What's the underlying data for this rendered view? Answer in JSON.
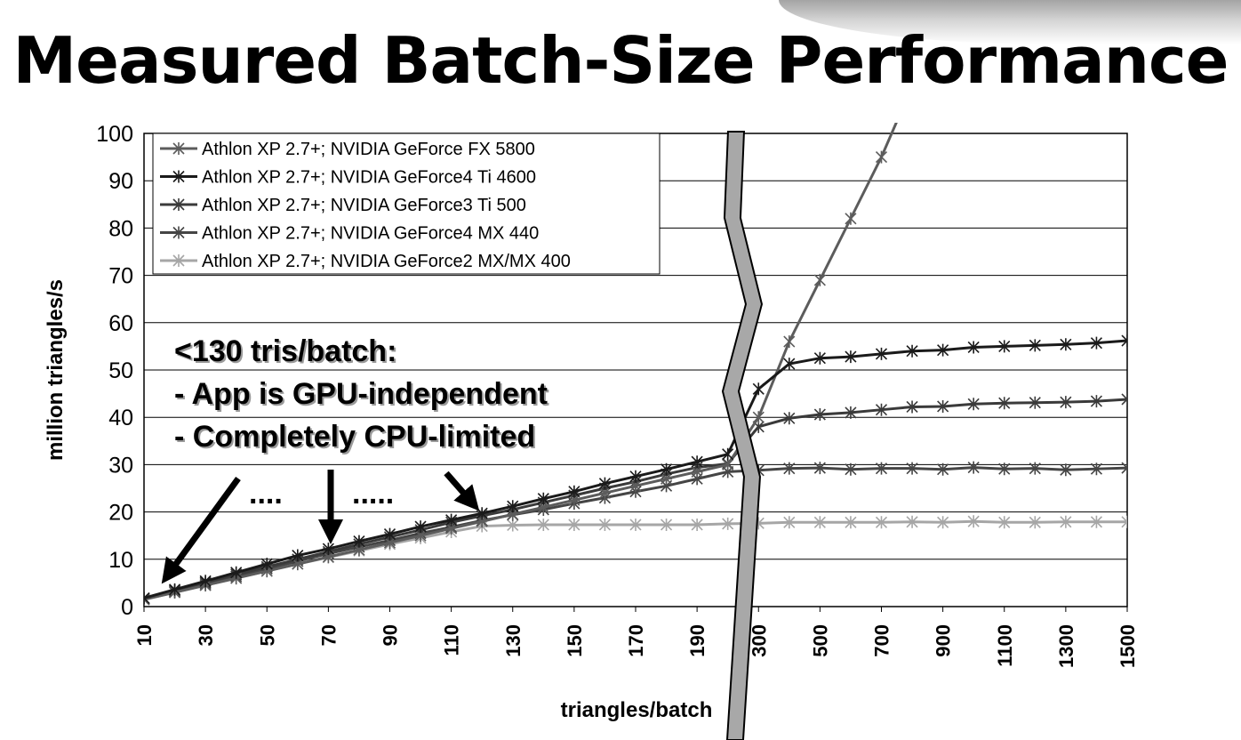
{
  "title": "Measured Batch-Size Performance",
  "chart_data": {
    "type": "line",
    "xlabel": "triangles/batch",
    "ylabel": "million triangles/s",
    "ylim": [
      0,
      100
    ],
    "yticks": [
      "0",
      "10",
      "20",
      "30",
      "40",
      "50",
      "60",
      "70",
      "80",
      "90",
      "100"
    ],
    "x": [
      10,
      20,
      30,
      40,
      50,
      60,
      70,
      80,
      90,
      100,
      110,
      120,
      130,
      140,
      150,
      160,
      170,
      180,
      190,
      200,
      300,
      400,
      500,
      600,
      700,
      800,
      900,
      1000,
      1100,
      1200,
      1300,
      1400,
      1500
    ],
    "xtick_labels": [
      "10",
      "30",
      "50",
      "70",
      "90",
      "110",
      "130",
      "150",
      "170",
      "190",
      "300",
      "500",
      "700",
      "900",
      "1100",
      "1300",
      "1500"
    ],
    "grid": "horizontal",
    "legend_position": "top-left",
    "axis_break": "between 200 and 300",
    "series": [
      {
        "name": "Athlon XP 2.7+; NVIDIA GeForce FX 5800",
        "color": "#5c5c5c",
        "values": [
          1.5,
          3,
          4.5,
          6,
          7.5,
          9,
          10.5,
          12,
          13.5,
          15,
          16.5,
          18,
          19.5,
          21,
          22.5,
          24,
          25.5,
          27,
          28.5,
          30,
          40,
          56,
          69,
          82,
          95,
          110,
          null,
          null,
          null,
          null,
          null,
          null,
          null
        ]
      },
      {
        "name": "Athlon XP 2.7+; NVIDIA GeForce4 Ti 4600",
        "color": "#1a1a1a",
        "values": [
          1.8,
          3.6,
          5.4,
          7.2,
          9,
          10.8,
          12.2,
          13.8,
          15.3,
          16.9,
          18.3,
          19.7,
          21.2,
          22.8,
          24.3,
          26,
          27.5,
          29,
          30.6,
          32.2,
          46,
          51.3,
          52.5,
          52.8,
          53.4,
          54,
          54.2,
          54.8,
          55,
          55.2,
          55.4,
          55.7,
          56.2
        ]
      },
      {
        "name": "Athlon XP 2.7+; NVIDIA GeForce3 Ti 500",
        "color": "#3a3a3a",
        "values": [
          1.7,
          3.4,
          5.1,
          6.8,
          8.4,
          10,
          11.6,
          13.2,
          14.7,
          16.2,
          17.8,
          19.2,
          20.5,
          22,
          23.5,
          25,
          26.4,
          28,
          29.4,
          30.2,
          38,
          39.8,
          40.6,
          41,
          41.6,
          42.2,
          42.3,
          42.8,
          43,
          43.1,
          43.2,
          43.4,
          43.8
        ]
      },
      {
        "name": "Athlon XP 2.7+; NVIDIA GeForce4 MX 440",
        "color": "#454545",
        "values": [
          1.6,
          3.2,
          4.8,
          6.4,
          8,
          9.6,
          11.2,
          12.6,
          14,
          15.5,
          16.8,
          18.2,
          19.4,
          20.5,
          21.8,
          23,
          24.3,
          25.5,
          27,
          28.5,
          28.8,
          29.2,
          29.3,
          29,
          29.2,
          29.2,
          29,
          29.4,
          29.1,
          29.2,
          28.9,
          29.1,
          29.3
        ]
      },
      {
        "name": "Athlon XP 2.7+; NVIDIA GeForce2 MX/MX 400",
        "color": "#a6a6a6",
        "values": [
          1.5,
          3,
          4.5,
          6,
          7.5,
          9,
          10.4,
          11.8,
          13.2,
          14.5,
          15.8,
          17,
          17.2,
          17.3,
          17.3,
          17.3,
          17.3,
          17.3,
          17.3,
          17.5,
          17.6,
          17.8,
          17.8,
          17.8,
          17.8,
          17.9,
          17.8,
          18,
          17.8,
          17.8,
          17.9,
          17.9,
          17.9
        ]
      }
    ],
    "annotations": [
      "<130 tris/batch:",
      "- App is GPU-independent",
      "- Completely CPU-limited",
      "....",
      "....."
    ]
  }
}
